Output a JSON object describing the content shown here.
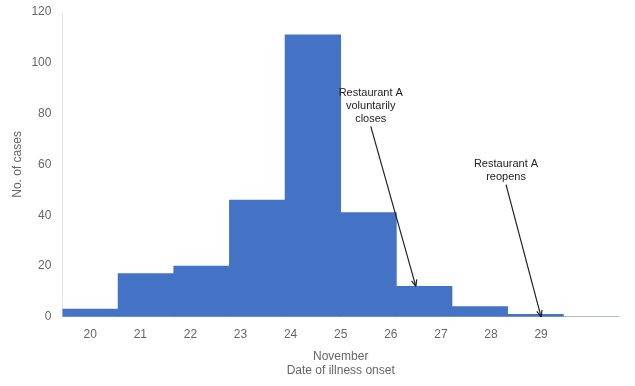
{
  "chart_data": {
    "type": "bar",
    "x": [
      20,
      21,
      22,
      23,
      24,
      25,
      26,
      27,
      28,
      29
    ],
    "values": [
      3,
      17,
      20,
      46,
      111,
      41,
      12,
      4,
      1,
      0
    ],
    "color": "#4472C4",
    "xlim": [
      20,
      30
    ],
    "xticks": [
      20,
      21,
      22,
      23,
      24,
      25,
      26,
      27,
      28,
      29
    ],
    "ylim": [
      0,
      120
    ],
    "yticks": [
      0,
      20,
      40,
      60,
      80,
      100,
      120
    ],
    "xlabel": "November\nDate of illness onset",
    "ylabel": "No. of cases",
    "grid": false,
    "annotations": [
      {
        "text": "Restaurant A\nvoluntarily\ncloses",
        "x": 26.5,
        "y": 12,
        "text_x": 25.6,
        "text_y": 75
      },
      {
        "text": "Restaurant A\nreopens",
        "x": 29.0,
        "y": 0,
        "text_x": 28.3,
        "text_y": 52
      }
    ]
  }
}
